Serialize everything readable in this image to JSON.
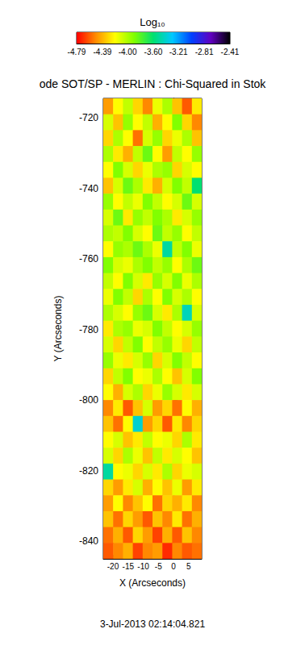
{
  "chart_data": {
    "type": "heatmap",
    "title": "ode SOT/SP - MERLIN : Chi-Squared in Stok",
    "xlabel": "X (Arcseconds)",
    "ylabel": "Y (Arcseconds)",
    "annotation": "3-Jul-2013 02:14:04.821",
    "xlim": [
      -23.2,
      9.3
    ],
    "ylim": [
      -845,
      -714.5
    ],
    "xticks": [
      -20,
      -15,
      -10,
      -5,
      0,
      5
    ],
    "yticks": [
      -840,
      -820,
      -800,
      -780,
      -760,
      -740,
      -720
    ],
    "x": [
      -21.575,
      -18.325,
      -15.075,
      -11.825,
      -8.575,
      -5.325,
      -2.075,
      1.175,
      4.425,
      7.675
    ],
    "y": [
      -716.75,
      -721.25,
      -725.75,
      -730.25,
      -734.75,
      -739.25,
      -743.75,
      -748.25,
      -752.75,
      -757.25,
      -761.75,
      -766.25,
      -770.75,
      -775.25,
      -779.75,
      -784.25,
      -788.75,
      -793.25,
      -797.75,
      -802.25,
      -806.75,
      -811.25,
      -815.75,
      -820.25,
      -824.75,
      -829.25,
      -833.75,
      -838.25,
      -842.75
    ],
    "values": [
      [
        -4.45,
        -4.2,
        -4.05,
        -4.3,
        -4.5,
        -4.15,
        -4.0,
        -4.35,
        -4.6,
        -4.25
      ],
      [
        -4.1,
        -4.35,
        -3.95,
        -4.2,
        -4.05,
        -4.4,
        -4.2,
        -3.9,
        -4.3,
        -4.5
      ],
      [
        -4.3,
        -4.0,
        -4.2,
        -4.55,
        -4.1,
        -3.95,
        -4.3,
        -4.15,
        -4.0,
        -4.35
      ],
      [
        -4.0,
        -4.25,
        -4.4,
        -4.05,
        -3.85,
        -4.2,
        -4.45,
        -4.05,
        -4.2,
        -3.95
      ],
      [
        -4.2,
        -3.9,
        -4.1,
        -4.3,
        -4.15,
        -4.0,
        -3.95,
        -4.3,
        -4.1,
        -4.2
      ],
      [
        -4.35,
        -4.1,
        -3.85,
        -4.0,
        -4.25,
        -4.4,
        -4.1,
        -3.9,
        -4.05,
        -3.6
      ],
      [
        -3.95,
        -4.2,
        -4.05,
        -4.15,
        -3.9,
        -4.05,
        -4.2,
        -4.1,
        -3.85,
        -4.1
      ],
      [
        -4.1,
        -3.85,
        -4.25,
        -3.95,
        -4.05,
        -3.9,
        -4.0,
        -4.25,
        -4.1,
        -3.95
      ],
      [
        -4.0,
        -4.05,
        -3.9,
        -4.1,
        -4.2,
        -3.85,
        -4.05,
        -3.95,
        -4.2,
        -4.05
      ],
      [
        -4.2,
        -3.95,
        -4.0,
        -3.85,
        -4.0,
        -4.15,
        -3.5,
        -4.05,
        -3.9,
        -4.15
      ],
      [
        -3.9,
        -4.1,
        -4.15,
        -4.0,
        -3.9,
        -4.05,
        -3.95,
        -4.2,
        -4.0,
        -3.85
      ],
      [
        -4.05,
        -4.2,
        -3.9,
        -4.1,
        -4.25,
        -3.95,
        -4.1,
        -3.9,
        -4.15,
        -4.0
      ],
      [
        -4.15,
        -3.9,
        -4.05,
        -4.3,
        -4.0,
        -4.2,
        -3.9,
        -4.1,
        -4.0,
        -4.2
      ],
      [
        -4.0,
        -4.1,
        -4.2,
        -3.95,
        -3.85,
        -4.1,
        -4.25,
        -4.0,
        -3.45,
        -4.1
      ],
      [
        -4.25,
        -4.0,
        -3.95,
        -4.15,
        -4.1,
        -3.9,
        -4.05,
        -4.2,
        -4.1,
        -3.95
      ],
      [
        -4.1,
        -4.3,
        -4.05,
        -3.9,
        -4.2,
        -4.05,
        -3.95,
        -4.15,
        -4.3,
        -4.05
      ],
      [
        -3.95,
        -4.15,
        -4.25,
        -4.1,
        -3.95,
        -4.3,
        -4.1,
        -3.9,
        -4.05,
        -4.2
      ],
      [
        -4.3,
        -4.05,
        -3.9,
        -4.2,
        -4.15,
        -4.0,
        -4.2,
        -4.35,
        -4.1,
        -3.9
      ],
      [
        -4.2,
        -4.4,
        -4.1,
        -4.0,
        -4.3,
        -4.15,
        -3.95,
        -4.1,
        -4.25,
        -4.1
      ],
      [
        -4.5,
        -4.25,
        -4.6,
        -4.35,
        -4.1,
        -4.45,
        -4.3,
        -4.55,
        -4.2,
        -4.4
      ],
      [
        -4.35,
        -4.55,
        -4.2,
        -3.4,
        -4.45,
        -4.3,
        -4.6,
        -4.25,
        -4.5,
        -4.3
      ],
      [
        -4.2,
        -4.1,
        -4.35,
        -4.25,
        -4.05,
        -4.2,
        -4.15,
        -4.3,
        -4.0,
        -4.25
      ],
      [
        -4.1,
        -4.3,
        -4.0,
        -4.15,
        -4.35,
        -4.05,
        -4.25,
        -4.1,
        -4.2,
        -4.35
      ],
      [
        -3.5,
        -4.2,
        -4.15,
        -4.3,
        -4.1,
        -4.25,
        -4.0,
        -4.3,
        -4.15,
        -4.1
      ],
      [
        -4.3,
        -4.45,
        -4.25,
        -4.1,
        -4.4,
        -4.2,
        -4.35,
        -4.15,
        -4.45,
        -4.25
      ],
      [
        -4.45,
        -4.2,
        -4.5,
        -4.35,
        -4.2,
        -4.55,
        -4.3,
        -4.4,
        -4.25,
        -4.5
      ],
      [
        -4.35,
        -4.55,
        -4.3,
        -4.45,
        -4.6,
        -4.35,
        -4.5,
        -4.25,
        -4.55,
        -4.4
      ],
      [
        -4.55,
        -4.4,
        -4.6,
        -4.3,
        -4.45,
        -4.65,
        -4.4,
        -4.6,
        -4.35,
        -4.5
      ],
      [
        -4.6,
        -4.5,
        -4.4,
        -4.65,
        -4.5,
        -4.45,
        -4.7,
        -4.5,
        -4.6,
        -4.55
      ]
    ],
    "colorbar": {
      "title": "Log₁₀",
      "range": [
        -4.79,
        -2.41
      ],
      "ticks": [
        -4.79,
        -4.39,
        {
          "value": -4,
          "label": "-4.00"
        },
        {
          "value": -3.6,
          "label": "-3.60"
        },
        -3.21,
        -2.81,
        -2.41
      ]
    }
  }
}
